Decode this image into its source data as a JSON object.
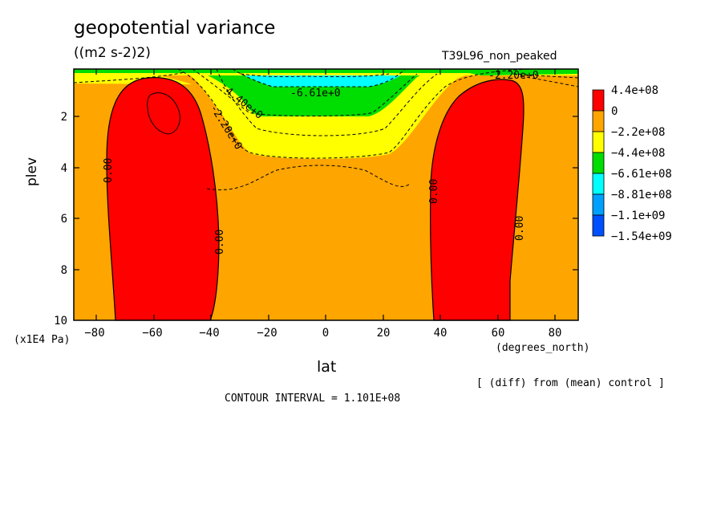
{
  "chart_data": {
    "type": "contour",
    "title": "geopotential variance",
    "units": "((m2 s-2)2)",
    "run_label": "T39L96_non_peaked",
    "xlabel": "lat",
    "x_unit": "(degrees_north)",
    "ylabel": "plev",
    "y_unit": "(x1E4 Pa)",
    "xlim": [
      -87,
      87
    ],
    "ylim": [
      0.3,
      10
    ],
    "x_ticks": [
      "−80",
      "−60",
      "−40",
      "−20",
      "0",
      "20",
      "40",
      "60",
      "80"
    ],
    "y_ticks": [
      "2",
      "4",
      "6",
      "8",
      "10"
    ],
    "legend": {
      "labels": [
        "4.4e+08",
        "0",
        "−2.2e+08",
        "−4.4e+08",
        "−6.61e+08",
        "−8.81e+08",
        "−1.1e+09",
        "−1.54e+09"
      ],
      "colors": [
        "#ff0000",
        "#ffa500",
        "#ffff00",
        "#00dd00",
        "#00ffff",
        "#00a0ff",
        "#0050ff"
      ]
    },
    "contour_labels": [
      "0.00",
      "0.00",
      "0.00",
      "0.00",
      "-6.61e+0",
      "-4.40e+0",
      "-2.20e+0",
      "-2.20e+0"
    ],
    "contour_interval_text": "CONTOUR INTERVAL = 1.101E+08",
    "note": "[ (diff) from (mean) control ]"
  }
}
